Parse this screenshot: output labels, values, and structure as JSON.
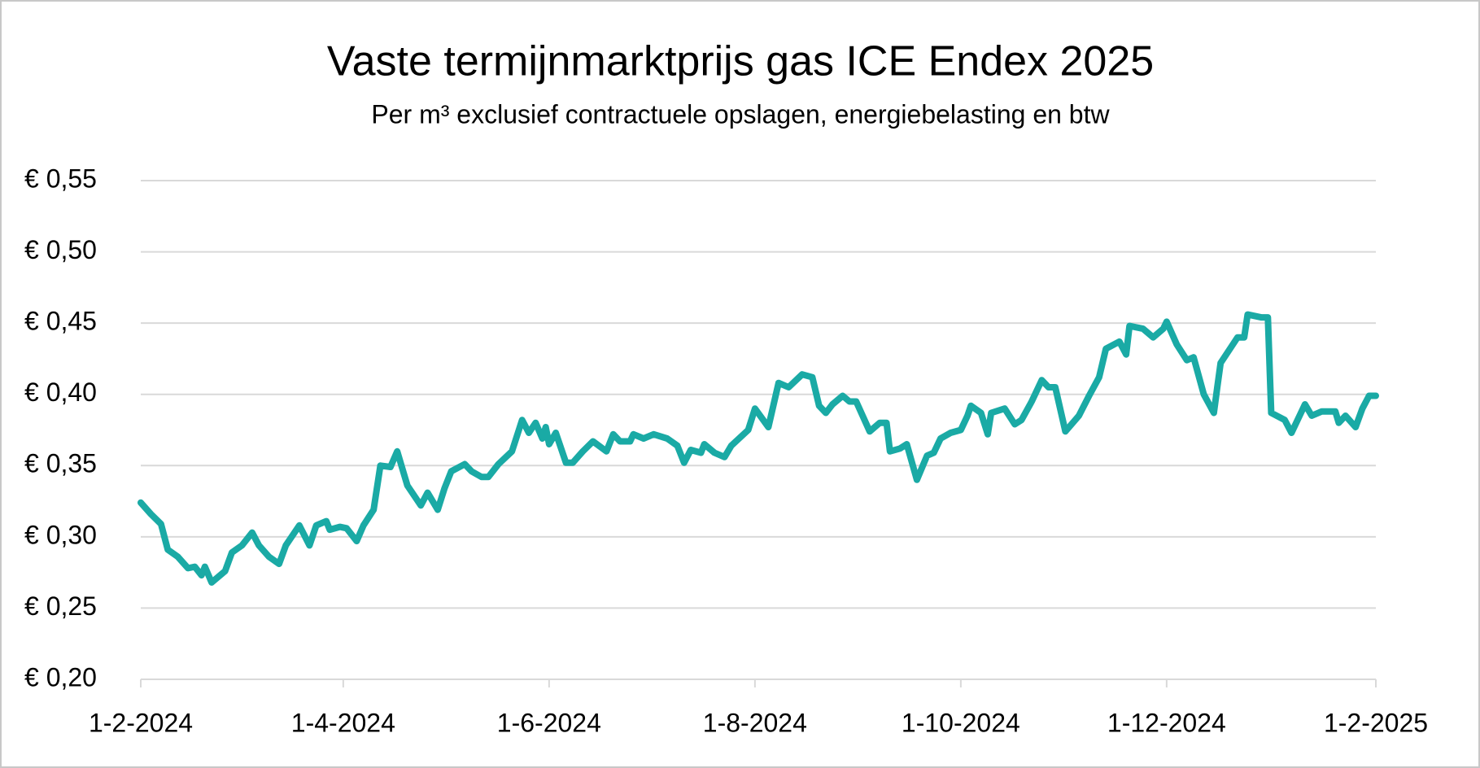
{
  "chart_data": {
    "type": "line",
    "title": "Vaste termijnmarktprijs gas ICE Endex 2025",
    "subtitle": "Per m³ exclusief contractuele opslagen, energiebelasting en btw",
    "x": [
      "2024-02-01",
      "2024-02-04",
      "2024-02-07",
      "2024-02-09",
      "2024-02-12",
      "2024-02-15",
      "2024-02-17",
      "2024-02-19",
      "2024-02-20",
      "2024-02-22",
      "2024-02-26",
      "2024-02-28",
      "2024-03-02",
      "2024-03-05",
      "2024-03-07",
      "2024-03-10",
      "2024-03-13",
      "2024-03-15",
      "2024-03-19",
      "2024-03-22",
      "2024-03-24",
      "2024-03-27",
      "2024-03-28",
      "2024-03-31",
      "2024-04-02",
      "2024-04-05",
      "2024-04-07",
      "2024-04-10",
      "2024-04-12",
      "2024-04-15",
      "2024-04-17",
      "2024-04-19",
      "2024-04-20",
      "2024-04-24",
      "2024-04-26",
      "2024-04-29",
      "2024-05-01",
      "2024-05-03",
      "2024-05-07",
      "2024-05-09",
      "2024-05-12",
      "2024-05-14",
      "2024-05-17",
      "2024-05-21",
      "2024-05-24",
      "2024-05-26",
      "2024-05-28",
      "2024-05-30",
      "2024-05-31",
      "2024-06-01",
      "2024-06-03",
      "2024-06-06",
      "2024-06-08",
      "2024-06-11",
      "2024-06-14",
      "2024-06-18",
      "2024-06-20",
      "2024-06-22",
      "2024-06-25",
      "2024-06-26",
      "2024-06-29",
      "2024-07-02",
      "2024-07-06",
      "2024-07-09",
      "2024-07-11",
      "2024-07-13",
      "2024-07-16",
      "2024-07-17",
      "2024-07-20",
      "2024-07-23",
      "2024-07-25",
      "2024-07-30",
      "2024-08-01",
      "2024-08-05",
      "2024-08-08",
      "2024-08-11",
      "2024-08-15",
      "2024-08-18",
      "2024-08-20",
      "2024-08-22",
      "2024-08-24",
      "2024-08-27",
      "2024-08-29",
      "2024-08-31",
      "2024-09-04",
      "2024-09-07",
      "2024-09-09",
      "2024-09-10",
      "2024-09-13",
      "2024-09-15",
      "2024-09-18",
      "2024-09-21",
      "2024-09-23",
      "2024-09-25",
      "2024-09-28",
      "2024-10-01",
      "2024-10-03",
      "2024-10-04",
      "2024-10-07",
      "2024-10-09",
      "2024-10-10",
      "2024-10-14",
      "2024-10-17",
      "2024-10-19",
      "2024-10-22",
      "2024-10-25",
      "2024-10-27",
      "2024-10-29",
      "2024-11-01",
      "2024-11-05",
      "2024-11-08",
      "2024-11-11",
      "2024-11-13",
      "2024-11-17",
      "2024-11-19",
      "2024-11-20",
      "2024-11-24",
      "2024-11-27",
      "2024-11-30",
      "2024-12-01",
      "2024-12-04",
      "2024-12-07",
      "2024-12-09",
      "2024-12-12",
      "2024-12-15",
      "2024-12-16",
      "2024-12-17",
      "2024-12-22",
      "2024-12-24",
      "2024-12-25",
      "2024-12-29",
      "2024-12-31",
      "2025-01-01",
      "2025-01-05",
      "2025-01-07",
      "2025-01-11",
      "2025-01-13",
      "2025-01-16",
      "2025-01-20",
      "2025-01-21",
      "2025-01-23",
      "2025-01-26",
      "2025-01-28",
      "2025-01-30",
      "2025-02-01"
    ],
    "series": [
      {
        "name": "Gas",
        "color": "#1aaaa5",
        "values": [
          0.324,
          0.316,
          0.309,
          0.291,
          0.286,
          0.278,
          0.279,
          0.273,
          0.279,
          0.268,
          0.276,
          0.289,
          0.294,
          0.303,
          0.294,
          0.286,
          0.281,
          0.294,
          0.308,
          0.294,
          0.308,
          0.311,
          0.305,
          0.307,
          0.306,
          0.297,
          0.308,
          0.319,
          0.35,
          0.349,
          0.36,
          0.344,
          0.336,
          0.322,
          0.331,
          0.319,
          0.334,
          0.346,
          0.351,
          0.346,
          0.342,
          0.342,
          0.351,
          0.36,
          0.382,
          0.373,
          0.38,
          0.369,
          0.377,
          0.365,
          0.373,
          0.352,
          0.352,
          0.36,
          0.367,
          0.36,
          0.372,
          0.367,
          0.367,
          0.372,
          0.369,
          0.372,
          0.369,
          0.364,
          0.352,
          0.361,
          0.359,
          0.365,
          0.359,
          0.356,
          0.364,
          0.375,
          0.39,
          0.377,
          0.408,
          0.405,
          0.414,
          0.412,
          0.392,
          0.387,
          0.393,
          0.399,
          0.395,
          0.395,
          0.374,
          0.38,
          0.38,
          0.36,
          0.362,
          0.365,
          0.34,
          0.357,
          0.359,
          0.369,
          0.373,
          0.375,
          0.385,
          0.392,
          0.387,
          0.372,
          0.387,
          0.39,
          0.379,
          0.382,
          0.395,
          0.41,
          0.405,
          0.405,
          0.374,
          0.385,
          0.399,
          0.412,
          0.432,
          0.437,
          0.428,
          0.448,
          0.446,
          0.44,
          0.446,
          0.451,
          0.435,
          0.424,
          0.426,
          0.4,
          0.387,
          0.405,
          0.422,
          0.44,
          0.44,
          0.456,
          0.454,
          0.454,
          0.387,
          0.382,
          0.373,
          0.393,
          0.385,
          0.388,
          0.388,
          0.38,
          0.385,
          0.377,
          0.39,
          0.399,
          0.399
        ]
      }
    ],
    "xlim": [
      "2024-02-01",
      "2025-02-01"
    ],
    "xticks": [
      {
        "value": "2024-02-01",
        "label": "1-2-2024"
      },
      {
        "value": "2024-04-01",
        "label": "1-4-2024"
      },
      {
        "value": "2024-06-01",
        "label": "1-6-2024"
      },
      {
        "value": "2024-08-01",
        "label": "1-8-2024"
      },
      {
        "value": "2024-10-01",
        "label": "1-10-2024"
      },
      {
        "value": "2024-12-01",
        "label": "1-12-2024"
      },
      {
        "value": "2025-02-01",
        "label": "1-2-2025"
      }
    ],
    "ylim": [
      0.2,
      0.55
    ],
    "yticks": [
      {
        "value": 0.2,
        "label": "€ 0,20"
      },
      {
        "value": 0.25,
        "label": "€ 0,25"
      },
      {
        "value": 0.3,
        "label": "€ 0,30"
      },
      {
        "value": 0.35,
        "label": "€ 0,35"
      },
      {
        "value": 0.4,
        "label": "€ 0,40"
      },
      {
        "value": 0.45,
        "label": "€ 0,45"
      },
      {
        "value": 0.5,
        "label": "€ 0,50"
      },
      {
        "value": 0.55,
        "label": "€ 0,55"
      }
    ],
    "grid": true
  }
}
